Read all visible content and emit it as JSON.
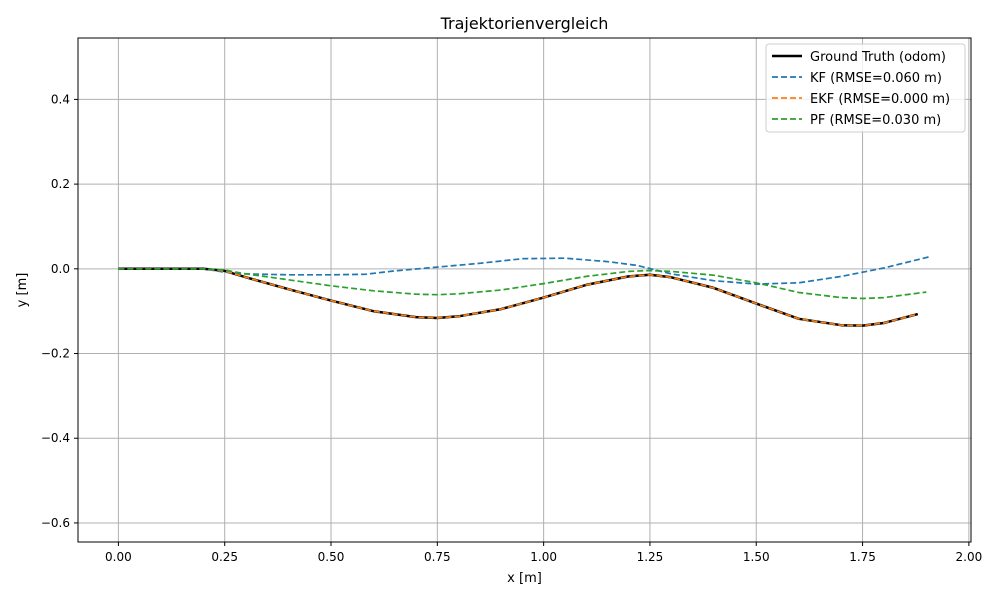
{
  "chart_data": {
    "type": "line",
    "title": "Trajektorienvergleich",
    "xlabel": "x [m]",
    "ylabel": "y [m]",
    "xlim": [
      -0.095,
      2.005
    ],
    "ylim": [
      -0.645,
      0.545
    ],
    "xticks": [
      0.0,
      0.25,
      0.5,
      0.75,
      1.0,
      1.25,
      1.5,
      1.75,
      2.0
    ],
    "xtick_labels": [
      "0.00",
      "0.25",
      "0.50",
      "0.75",
      "1.00",
      "1.25",
      "1.50",
      "1.75",
      "2.00"
    ],
    "yticks": [
      0.4,
      0.2,
      0.0,
      -0.2,
      -0.4,
      -0.6
    ],
    "ytick_labels": [
      "0.4",
      "0.2",
      "0.0",
      "−0.2",
      "−0.4",
      "−0.6"
    ],
    "grid": true,
    "legend_position": "top-right",
    "series": [
      {
        "name": "Ground Truth (odom)",
        "color": "#000000",
        "style": "solid",
        "x": [
          0.0,
          0.1,
          0.2,
          0.25,
          0.3,
          0.4,
          0.5,
          0.6,
          0.7,
          0.75,
          0.8,
          0.9,
          1.0,
          1.1,
          1.2,
          1.25,
          1.3,
          1.4,
          1.5,
          1.6,
          1.7,
          1.75,
          1.8,
          1.88
        ],
        "y": [
          0.0,
          0.0,
          0.0,
          -0.005,
          -0.02,
          -0.048,
          -0.075,
          -0.1,
          -0.114,
          -0.116,
          -0.112,
          -0.095,
          -0.068,
          -0.038,
          -0.018,
          -0.014,
          -0.02,
          -0.045,
          -0.082,
          -0.118,
          -0.133,
          -0.134,
          -0.128,
          -0.107
        ]
      },
      {
        "name": "KF (RMSE=0.060 m)",
        "color": "#1f77b4",
        "style": "dashed",
        "x": [
          0.0,
          0.1,
          0.2,
          0.25,
          0.3,
          0.4,
          0.5,
          0.58,
          0.65,
          0.75,
          0.85,
          0.95,
          1.05,
          1.15,
          1.22,
          1.3,
          1.4,
          1.5,
          1.6,
          1.7,
          1.8,
          1.91
        ],
        "y": [
          0.0,
          0.0,
          0.0,
          -0.008,
          -0.012,
          -0.014,
          -0.014,
          -0.013,
          -0.005,
          0.004,
          0.013,
          0.024,
          0.025,
          0.017,
          0.008,
          -0.012,
          -0.028,
          -0.036,
          -0.033,
          -0.018,
          0.002,
          0.029
        ]
      },
      {
        "name": "EKF (RMSE=0.000 m)",
        "color": "#ff7f0e",
        "style": "dashed",
        "x": [
          0.0,
          0.1,
          0.2,
          0.25,
          0.3,
          0.4,
          0.5,
          0.6,
          0.7,
          0.75,
          0.8,
          0.9,
          1.0,
          1.1,
          1.2,
          1.25,
          1.3,
          1.4,
          1.5,
          1.6,
          1.7,
          1.75,
          1.8,
          1.88
        ],
        "y": [
          0.0,
          0.0,
          0.0,
          -0.005,
          -0.02,
          -0.048,
          -0.075,
          -0.1,
          -0.114,
          -0.116,
          -0.112,
          -0.095,
          -0.068,
          -0.038,
          -0.018,
          -0.014,
          -0.02,
          -0.045,
          -0.082,
          -0.118,
          -0.133,
          -0.134,
          -0.128,
          -0.107
        ]
      },
      {
        "name": "PF (RMSE=0.030 m)",
        "color": "#2ca02c",
        "style": "dashed",
        "x": [
          0.0,
          0.1,
          0.2,
          0.25,
          0.3,
          0.4,
          0.5,
          0.6,
          0.7,
          0.75,
          0.8,
          0.9,
          1.0,
          1.1,
          1.2,
          1.25,
          1.3,
          1.4,
          1.5,
          1.6,
          1.7,
          1.75,
          1.8,
          1.9
        ],
        "y": [
          0.0,
          0.0,
          0.0,
          -0.003,
          -0.012,
          -0.026,
          -0.04,
          -0.052,
          -0.06,
          -0.061,
          -0.059,
          -0.05,
          -0.035,
          -0.018,
          -0.006,
          -0.004,
          -0.006,
          -0.015,
          -0.033,
          -0.056,
          -0.068,
          -0.07,
          -0.068,
          -0.055
        ]
      }
    ]
  }
}
